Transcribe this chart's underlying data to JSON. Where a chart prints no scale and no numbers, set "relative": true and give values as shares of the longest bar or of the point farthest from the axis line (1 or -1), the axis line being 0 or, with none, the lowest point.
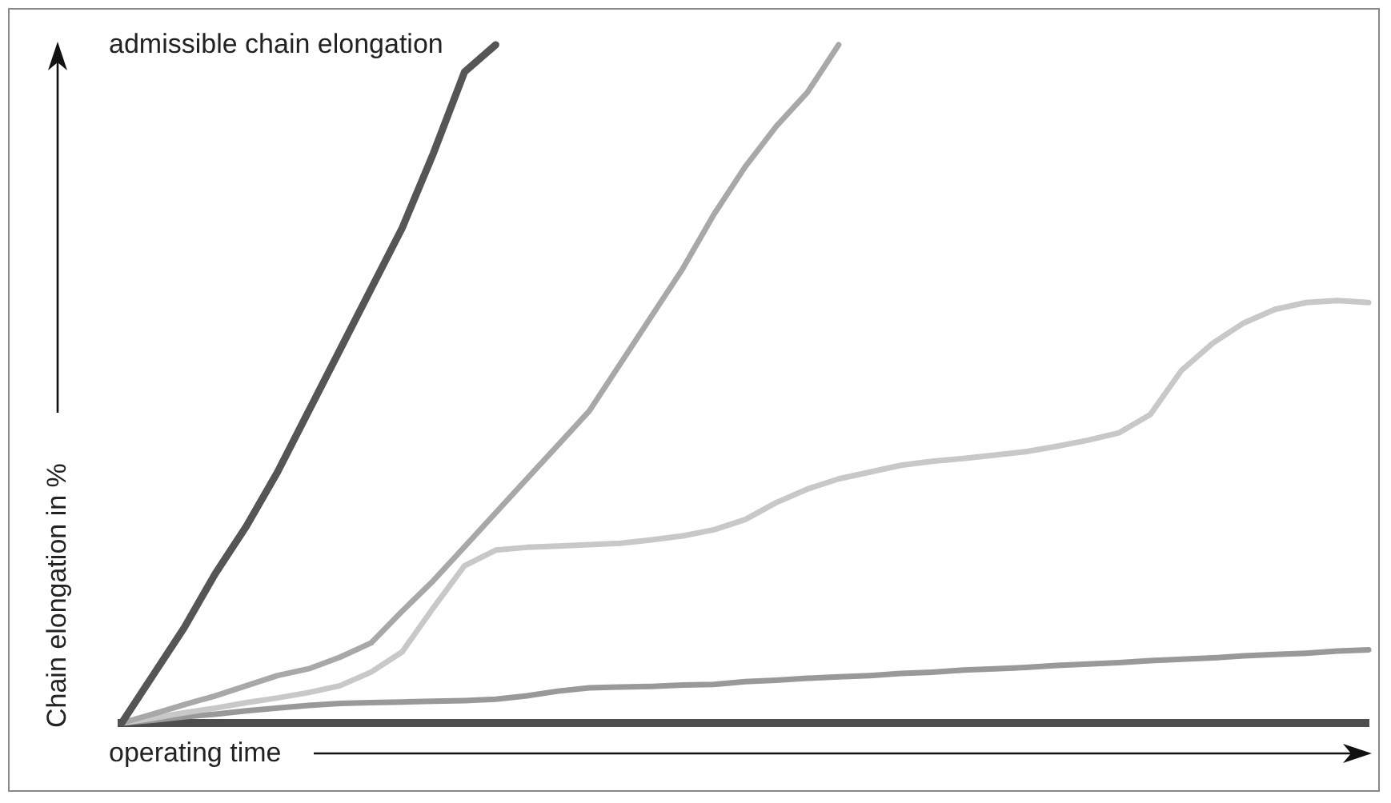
{
  "chart_data": {
    "type": "line",
    "relative": true,
    "tick_labels": false,
    "marker": "none",
    "xlabel": "operating time",
    "ylabel": "Chain elongation in %",
    "annotations": [
      "admissible chain elongation"
    ],
    "categories": [
      null,
      null,
      null,
      null,
      null,
      null,
      null,
      null,
      null,
      null,
      null,
      null,
      null,
      null,
      null,
      null,
      null,
      null,
      null,
      null,
      null,
      null,
      null,
      null,
      null,
      null,
      null,
      null,
      null,
      null,
      null,
      null,
      null,
      null,
      null,
      null,
      null,
      null,
      null,
      null,
      null
    ],
    "series": [
      {
        "color": "#555555",
        "values": [
          0,
          0.07,
          0.14,
          0.22,
          0.29,
          0.37,
          0.46,
          0.55,
          0.64,
          0.73,
          0.84,
          0.96,
          1,
          null,
          null,
          null,
          null,
          null,
          null,
          null,
          null,
          null,
          null,
          null,
          null,
          null,
          null,
          null,
          null,
          null,
          null,
          null,
          null,
          null,
          null,
          null,
          null,
          null,
          null,
          null,
          null
        ]
      },
      {
        "color": "#a8a8a8",
        "values": [
          0,
          0.013,
          0.027,
          0.04,
          0.055,
          0.07,
          0.08,
          0.097,
          0.118,
          0.165,
          0.21,
          0.26,
          0.31,
          0.36,
          0.41,
          0.46,
          0.53,
          0.6,
          0.67,
          0.75,
          0.82,
          0.88,
          0.93,
          1,
          null,
          null,
          null,
          null,
          null,
          null,
          null,
          null,
          null,
          null,
          null,
          null,
          null,
          null,
          null,
          null,
          null
        ]
      },
      {
        "color": "#c8c8c8",
        "values": [
          0,
          0.007,
          0.015,
          0.022,
          0.03,
          0.037,
          0.045,
          0.055,
          0.075,
          0.105,
          0.17,
          0.232,
          0.255,
          0.259,
          0.261,
          0.263,
          0.265,
          0.27,
          0.276,
          0.285,
          0.3,
          0.325,
          0.345,
          0.36,
          0.37,
          0.38,
          0.386,
          0.39,
          0.395,
          0.4,
          0.408,
          0.417,
          0.428,
          0.455,
          0.52,
          0.56,
          0.59,
          0.61,
          0.62,
          0.623,
          0.62
        ]
      },
      {
        "color": "#999999",
        "values": [
          0,
          0.004,
          0.009,
          0.013,
          0.018,
          0.022,
          0.026,
          0.029,
          0.03,
          0.031,
          0.032,
          0.033,
          0.035,
          0.04,
          0.047,
          0.052,
          0.053,
          0.054,
          0.056,
          0.057,
          0.061,
          0.063,
          0.066,
          0.068,
          0.07,
          0.073,
          0.075,
          0.078,
          0.08,
          0.082,
          0.085,
          0.087,
          0.089,
          0.092,
          0.094,
          0.096,
          0.099,
          0.101,
          0.103,
          0.106,
          0.108
        ]
      }
    ]
  }
}
